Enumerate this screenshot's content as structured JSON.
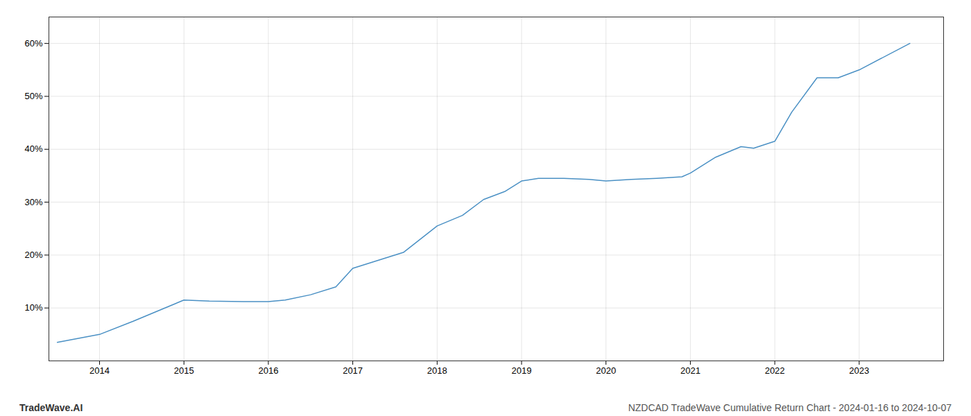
{
  "chart_data": {
    "type": "line",
    "title": "NZDCAD TradeWave Cumulative Return Chart - 2024-01-16 to 2024-10-07",
    "annotations": [
      "TradeWave.AI"
    ],
    "x": [
      2013.5,
      2014.0,
      2014.4,
      2014.7,
      2015.0,
      2015.3,
      2015.7,
      2016.0,
      2016.2,
      2016.5,
      2016.8,
      2017.0,
      2017.3,
      2017.6,
      2018.0,
      2018.3,
      2018.55,
      2018.8,
      2019.0,
      2019.2,
      2019.5,
      2019.8,
      2020.0,
      2020.3,
      2020.6,
      2020.9,
      2021.0,
      2021.3,
      2021.6,
      2021.75,
      2022.0,
      2022.2,
      2022.5,
      2022.75,
      2023.0,
      2023.6
    ],
    "values": [
      3.5,
      5.0,
      7.5,
      9.5,
      11.5,
      11.3,
      11.2,
      11.2,
      11.5,
      12.5,
      14.0,
      17.5,
      19.0,
      20.5,
      25.5,
      27.5,
      30.5,
      32.0,
      34.0,
      34.5,
      34.5,
      34.3,
      34.0,
      34.3,
      34.5,
      34.8,
      35.5,
      38.5,
      40.5,
      40.2,
      41.5,
      47.0,
      53.5,
      53.5,
      55.0,
      60.0
    ],
    "color": "#4a90c4",
    "xlim": [
      2013.4,
      2024.0
    ],
    "xticks": [
      2014,
      2015,
      2016,
      2017,
      2018,
      2019,
      2020,
      2021,
      2022,
      2023
    ],
    "ylim": [
      0,
      65
    ],
    "yticks": [
      {
        "value": 10,
        "label": "10%"
      },
      {
        "value": 20,
        "label": "20%"
      },
      {
        "value": 30,
        "label": "30%"
      },
      {
        "value": 40,
        "label": "40%"
      },
      {
        "value": 50,
        "label": "50%"
      },
      {
        "value": 60,
        "label": "60%"
      }
    ],
    "grid": true
  }
}
